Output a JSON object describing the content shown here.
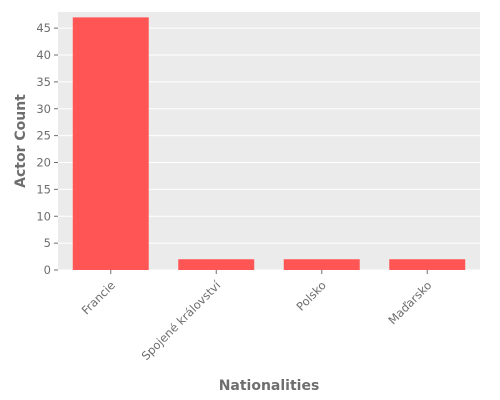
{
  "chart_data": {
    "type": "bar",
    "title": "",
    "xlabel": "Nationalities",
    "ylabel": "Actor Count",
    "categories": [
      "Francie",
      "Spojené království",
      "Polsko",
      "Maďarsko"
    ],
    "values": [
      47,
      2,
      2,
      2
    ],
    "ylim": [
      0,
      48
    ],
    "yticks": [
      0,
      5,
      10,
      15,
      20,
      25,
      30,
      35,
      40,
      45
    ],
    "grid": true,
    "legend": "none",
    "bar_color": "#ff5555",
    "panel_color": "#ebebeb"
  }
}
